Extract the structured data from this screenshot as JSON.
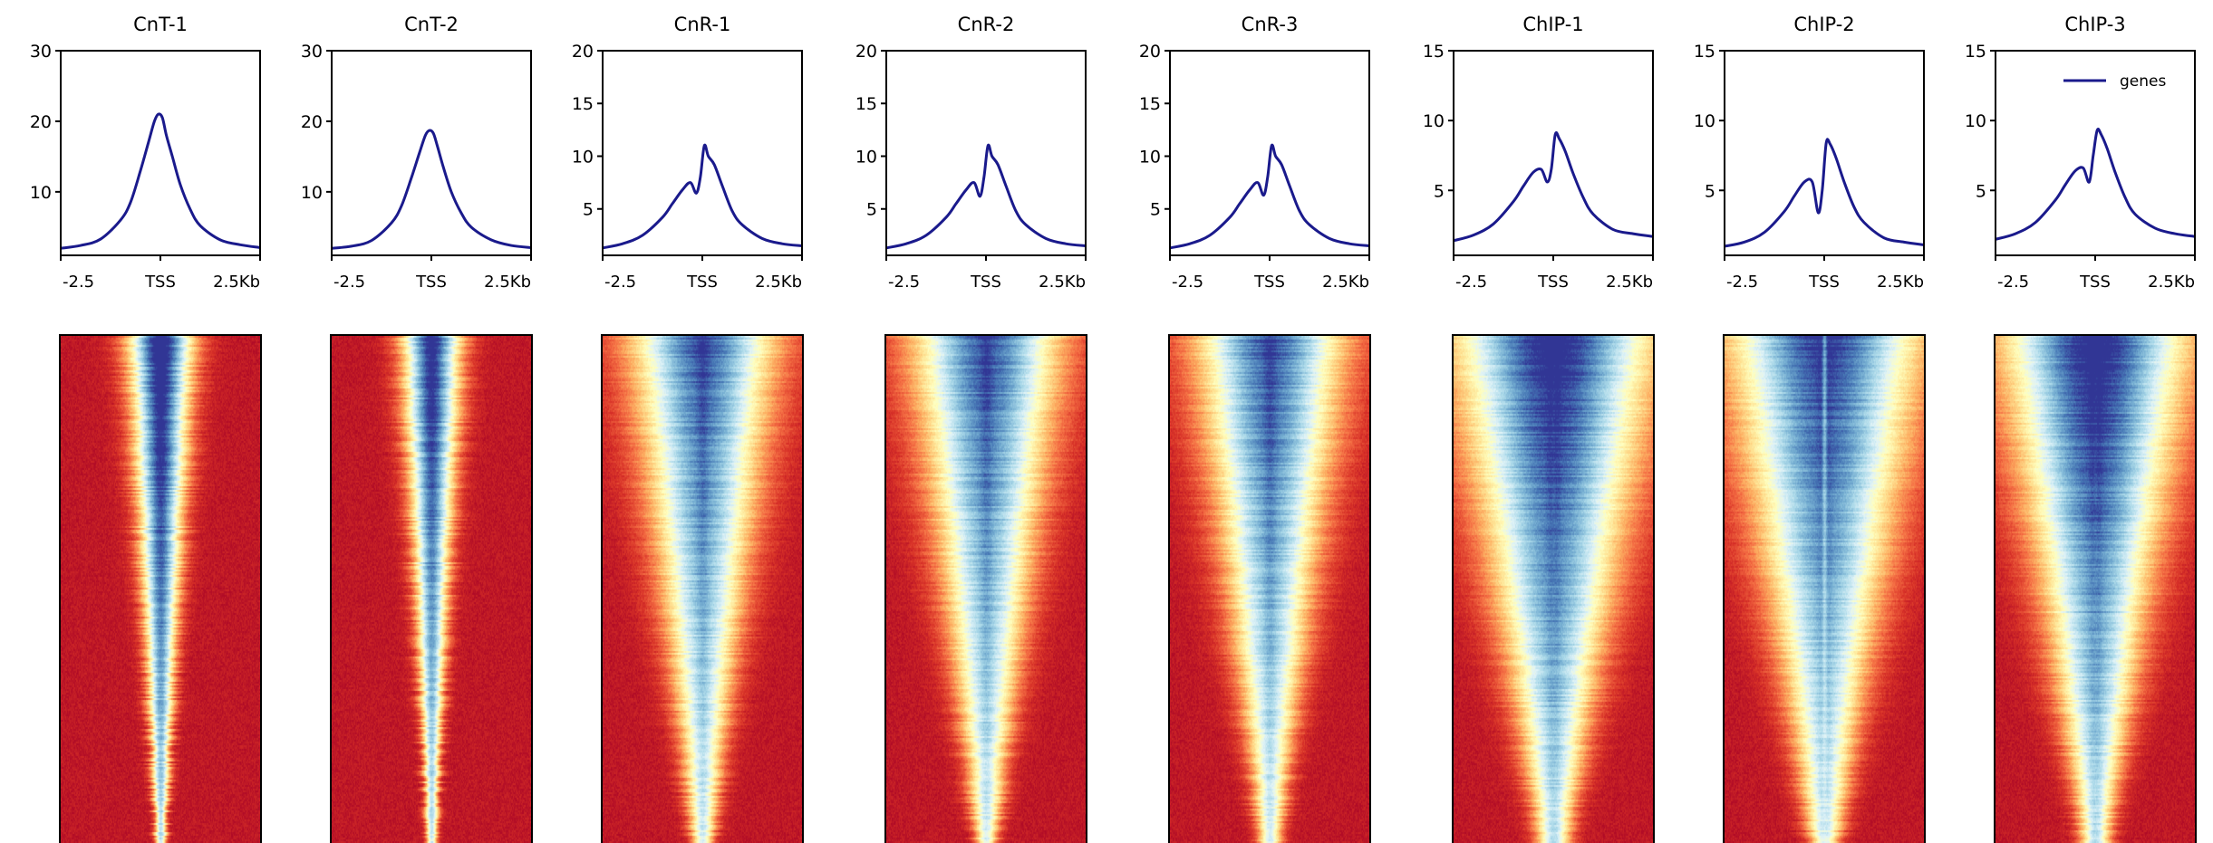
{
  "x_tick_labels": [
    "-2.5",
    "TSS",
    "2.5Kb"
  ],
  "legend_label": "genes",
  "line_color": "#1a1a8c",
  "chart_data": [
    {
      "type": "line",
      "title": "CnT-1",
      "ylim": [
        1,
        30
      ],
      "yticks": [
        10,
        20,
        30
      ],
      "x": [
        -2.5,
        -2,
        -1.5,
        -1,
        -0.75,
        -0.5,
        -0.3,
        -0.15,
        -0.05,
        0.05,
        0.15,
        0.3,
        0.5,
        0.75,
        1,
        1.5,
        2,
        2.5
      ],
      "series": [
        {
          "name": "genes",
          "values": [
            2,
            2.4,
            3.3,
            6,
            8.5,
            13,
            17,
            20,
            21,
            20.5,
            18,
            15,
            11,
            7.5,
            5.2,
            3.2,
            2.5,
            2.1
          ]
        }
      ]
    },
    {
      "type": "line",
      "title": "CnT-2",
      "ylim": [
        1,
        30
      ],
      "yticks": [
        10,
        20,
        30
      ],
      "x": [
        -2.5,
        -2,
        -1.5,
        -1,
        -0.75,
        -0.5,
        -0.3,
        -0.15,
        -0.05,
        0.05,
        0.15,
        0.3,
        0.5,
        0.75,
        1,
        1.5,
        2,
        2.5
      ],
      "series": [
        {
          "name": "genes",
          "values": [
            2,
            2.3,
            3.1,
            5.6,
            8,
            12,
            15.5,
            18,
            18.7,
            18.3,
            16.5,
            13.5,
            10,
            7,
            5,
            3.2,
            2.4,
            2.1
          ]
        }
      ]
    },
    {
      "type": "line",
      "title": "CnR-1",
      "ylim": [
        0.6,
        20
      ],
      "yticks": [
        5,
        10,
        15,
        20
      ],
      "x": [
        -2.5,
        -2,
        -1.5,
        -1,
        -0.75,
        -0.5,
        -0.3,
        -0.15,
        -0.05,
        0.05,
        0.15,
        0.3,
        0.5,
        0.75,
        1,
        1.5,
        2,
        2.5
      ],
      "series": [
        {
          "name": "genes",
          "values": [
            1.3,
            1.7,
            2.5,
            4.2,
            5.5,
            6.8,
            7.5,
            6.5,
            8,
            11,
            10,
            9.2,
            7.2,
            4.8,
            3.5,
            2.2,
            1.7,
            1.5
          ]
        }
      ]
    },
    {
      "type": "line",
      "title": "CnR-2",
      "ylim": [
        0.6,
        20
      ],
      "yticks": [
        5,
        10,
        15,
        20
      ],
      "x": [
        -2.5,
        -2,
        -1.5,
        -1,
        -0.75,
        -0.5,
        -0.3,
        -0.15,
        -0.05,
        0.05,
        0.15,
        0.3,
        0.5,
        0.75,
        1,
        1.5,
        2,
        2.5
      ],
      "series": [
        {
          "name": "genes",
          "values": [
            1.3,
            1.7,
            2.5,
            4.2,
            5.5,
            6.8,
            7.5,
            6.2,
            8,
            11,
            10,
            9.2,
            7.2,
            4.8,
            3.5,
            2.2,
            1.7,
            1.5
          ]
        }
      ]
    },
    {
      "type": "line",
      "title": "CnR-3",
      "ylim": [
        0.6,
        20
      ],
      "yticks": [
        5,
        10,
        15,
        20
      ],
      "x": [
        -2.5,
        -2,
        -1.5,
        -1,
        -0.75,
        -0.5,
        -0.3,
        -0.15,
        -0.05,
        0.05,
        0.15,
        0.3,
        0.5,
        0.75,
        1,
        1.5,
        2,
        2.5
      ],
      "series": [
        {
          "name": "genes",
          "values": [
            1.3,
            1.7,
            2.5,
            4.2,
            5.5,
            6.8,
            7.5,
            6.3,
            8,
            11,
            10,
            9.2,
            7.2,
            4.8,
            3.5,
            2.2,
            1.7,
            1.5
          ]
        }
      ]
    },
    {
      "type": "line",
      "title": "ChIP-1",
      "ylim": [
        0.35,
        15
      ],
      "yticks": [
        5,
        10,
        15
      ],
      "x": [
        -2.5,
        -2,
        -1.5,
        -1,
        -0.75,
        -0.5,
        -0.3,
        -0.15,
        -0.05,
        0.05,
        0.15,
        0.3,
        0.5,
        0.75,
        1,
        1.5,
        2,
        2.5
      ],
      "series": [
        {
          "name": "genes",
          "values": [
            1.4,
            1.8,
            2.6,
            4.2,
            5.3,
            6.3,
            6.5,
            5.6,
            6.5,
            9,
            8.7,
            7.8,
            6.2,
            4.5,
            3.3,
            2.2,
            1.9,
            1.7
          ]
        }
      ]
    },
    {
      "type": "line",
      "title": "ChIP-2",
      "ylim": [
        0.35,
        15
      ],
      "yticks": [
        5,
        10,
        15
      ],
      "x": [
        -2.5,
        -2,
        -1.5,
        -1,
        -0.75,
        -0.5,
        -0.3,
        -0.15,
        -0.05,
        0.05,
        0.15,
        0.3,
        0.5,
        0.75,
        1,
        1.5,
        2,
        2.5
      ],
      "series": [
        {
          "name": "genes",
          "values": [
            1,
            1.3,
            2,
            3.5,
            4.6,
            5.6,
            5.6,
            3.4,
            5,
            8.4,
            8.3,
            7.3,
            5.6,
            3.8,
            2.7,
            1.6,
            1.3,
            1.1
          ]
        }
      ]
    },
    {
      "type": "line",
      "title": "ChIP-3",
      "ylim": [
        0.35,
        15
      ],
      "yticks": [
        5,
        10,
        15
      ],
      "x": [
        -2.5,
        -2,
        -1.5,
        -1,
        -0.75,
        -0.5,
        -0.3,
        -0.15,
        -0.05,
        0.05,
        0.15,
        0.3,
        0.5,
        0.75,
        1,
        1.5,
        2,
        2.5
      ],
      "series": [
        {
          "name": "genes",
          "values": [
            1.5,
            1.9,
            2.7,
            4.3,
            5.4,
            6.4,
            6.6,
            5.6,
            7.5,
            9.3,
            9,
            8,
            6.3,
            4.5,
            3.3,
            2.3,
            1.9,
            1.7
          ]
        }
      ],
      "legend": "top-right"
    }
  ]
}
